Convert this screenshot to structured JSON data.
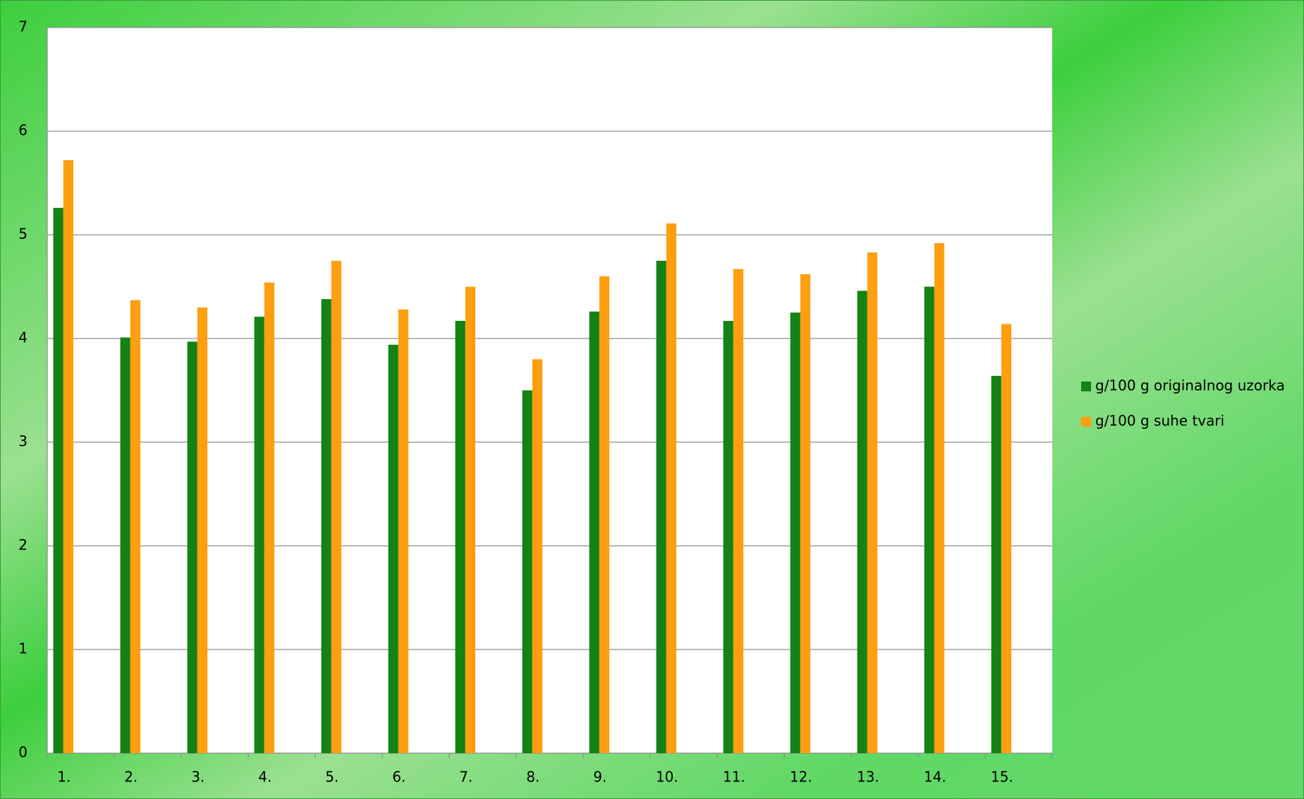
{
  "chart_data": {
    "type": "bar",
    "categories": [
      "1.",
      "2.",
      "3.",
      "4.",
      "5.",
      "6.",
      "7.",
      "8.",
      "9.",
      "10.",
      "11.",
      "12.",
      "13.",
      "14.",
      "15."
    ],
    "series": [
      {
        "name": "g/100 g originalnog uzorka",
        "color": "#148214",
        "values": [
          5.26,
          4.01,
          3.97,
          4.21,
          4.38,
          3.94,
          4.17,
          3.5,
          4.26,
          4.75,
          4.17,
          4.25,
          4.46,
          4.5,
          3.64
        ]
      },
      {
        "name": "g/100 g suhe tvari",
        "color": "#ff9e0f",
        "values": [
          5.72,
          4.37,
          4.3,
          4.54,
          4.75,
          4.28,
          4.5,
          3.8,
          4.6,
          5.11,
          4.67,
          4.62,
          4.83,
          4.92,
          4.14
        ]
      }
    ],
    "ylim": [
      0,
      7
    ],
    "yticks": [
      0,
      1,
      2,
      3,
      4,
      5,
      6,
      7
    ],
    "grid": true,
    "legend": "right"
  }
}
